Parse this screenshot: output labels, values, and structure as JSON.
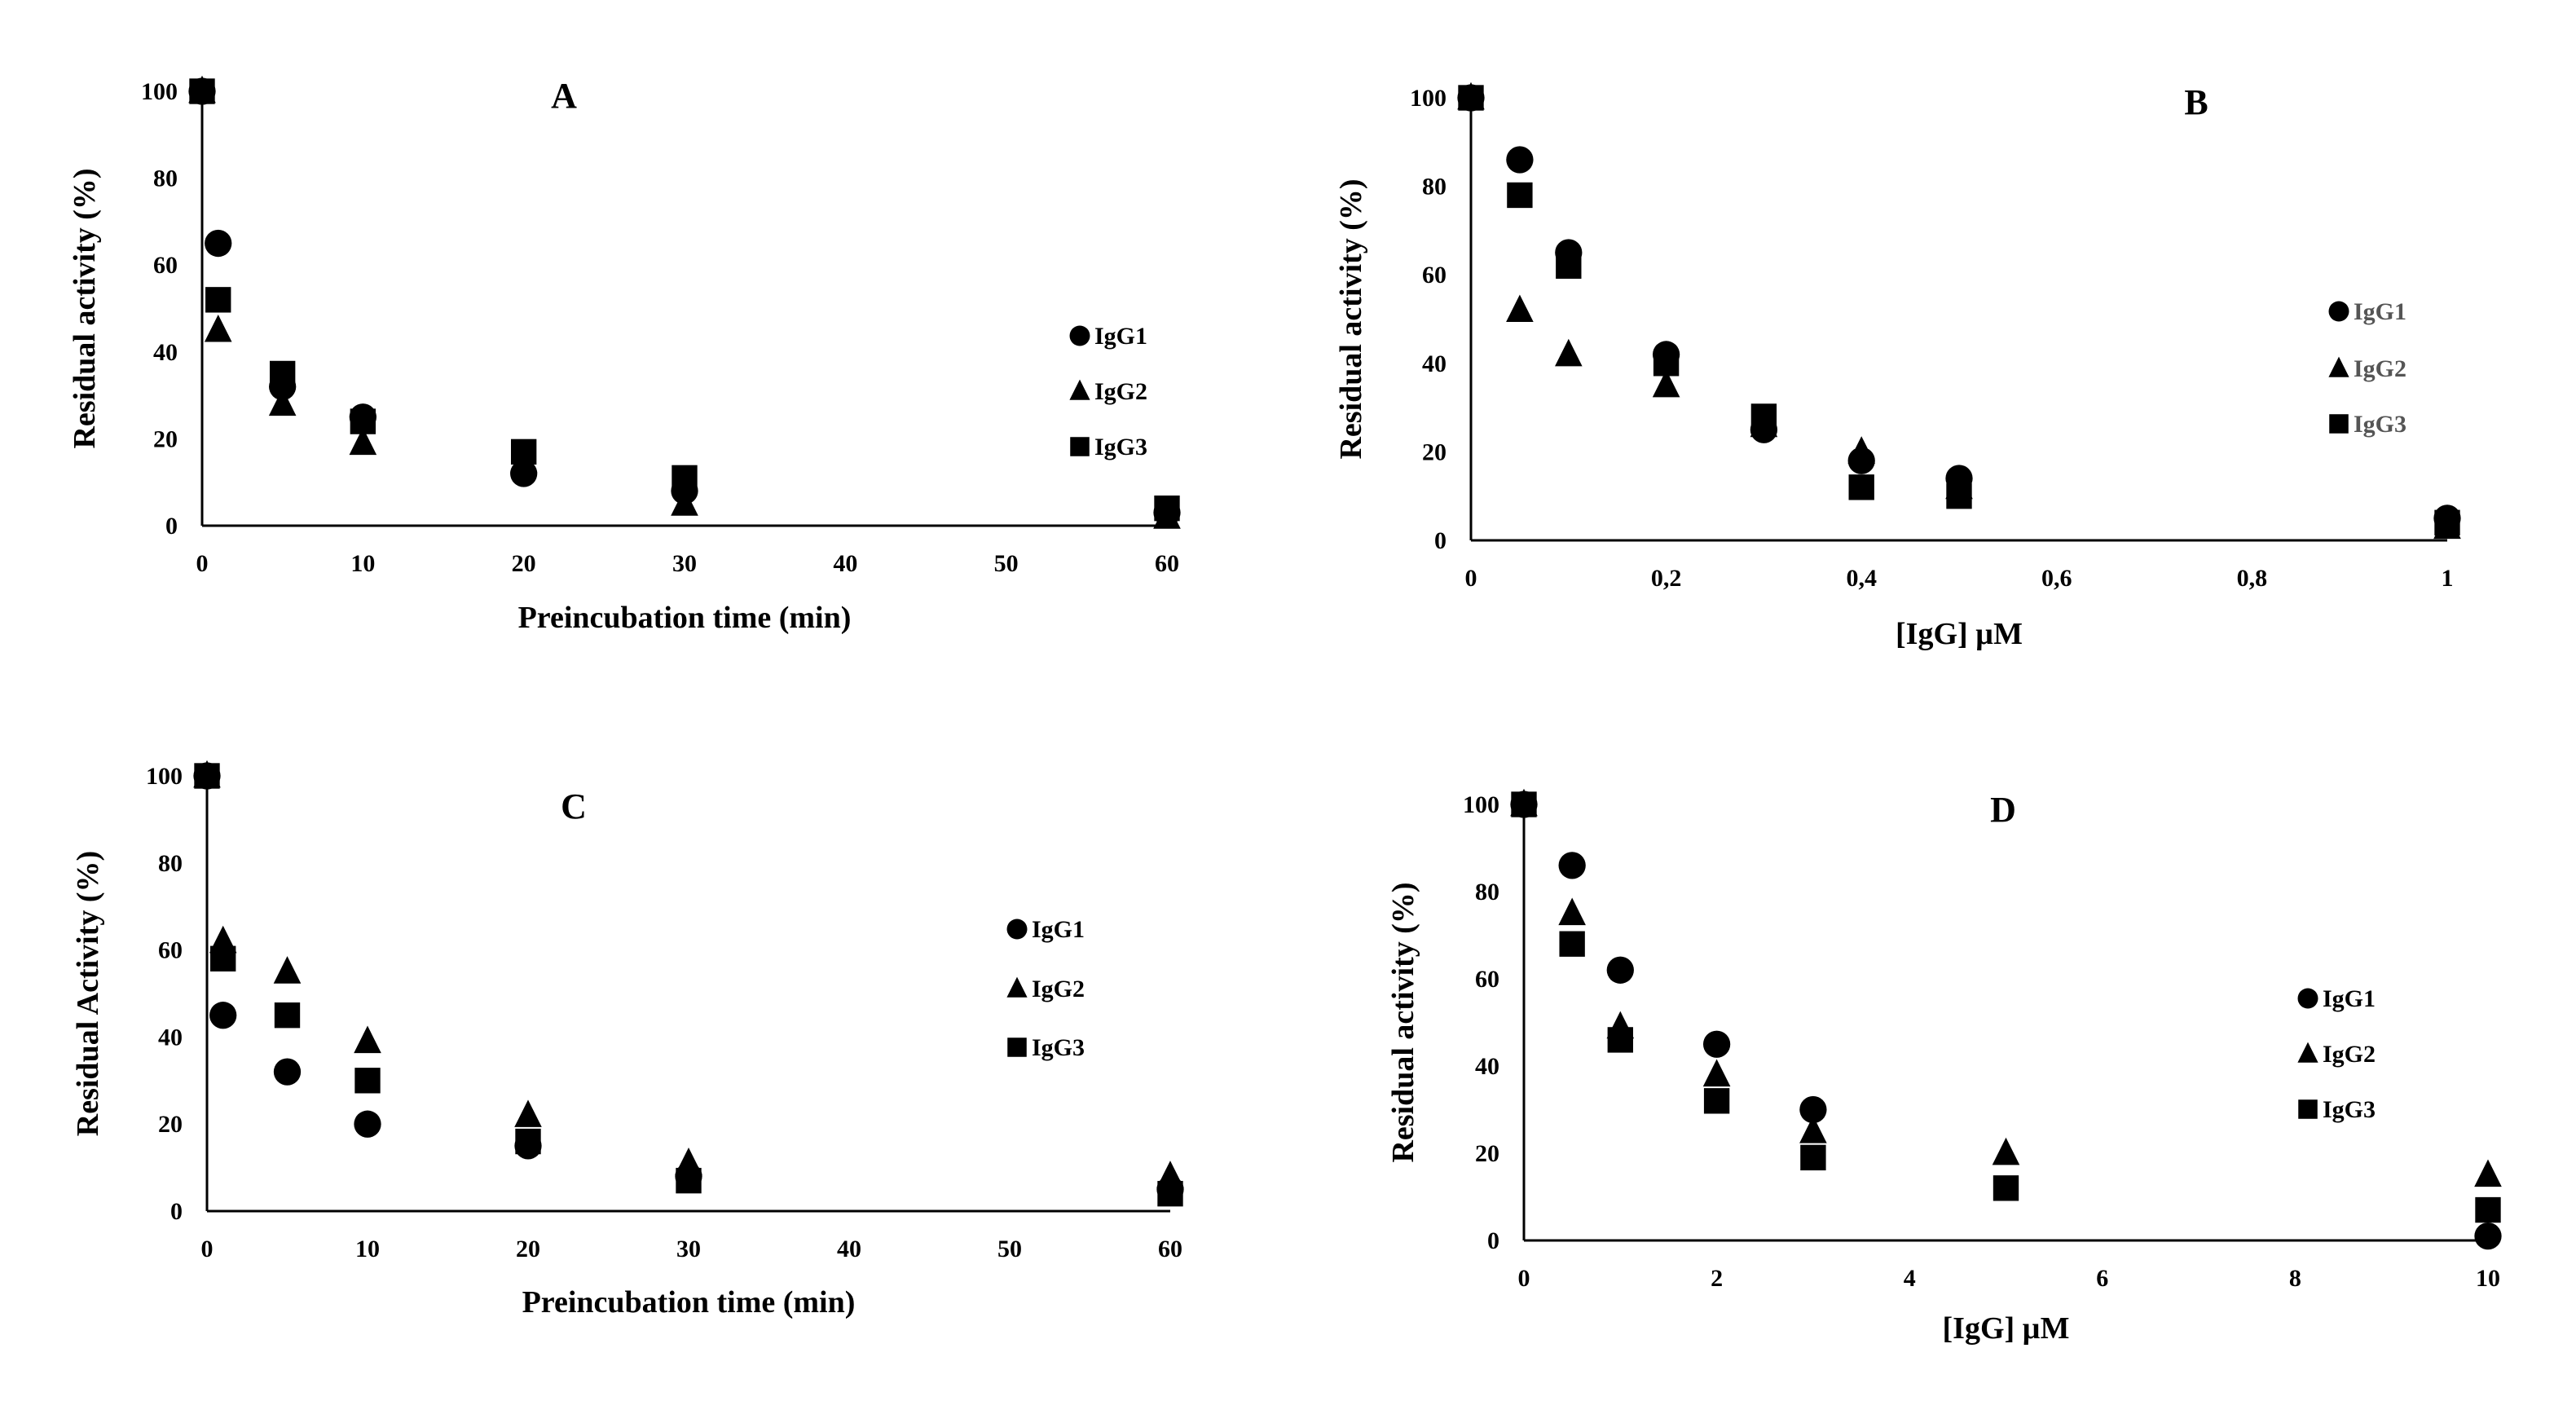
{
  "figure": {
    "colors": {
      "marker": "#000000",
      "axis": "#000000",
      "background": "#ffffff",
      "legend_text_B": "#555555"
    }
  },
  "chart_data": [
    {
      "panel": "A",
      "type": "scatter",
      "title": "A",
      "xlabel": "Preincubation time (min)",
      "ylabel": "Residual activity (%)",
      "xlim": [
        0,
        60
      ],
      "ylim": [
        0,
        100
      ],
      "xticks": [
        "0",
        "10",
        "20",
        "30",
        "40",
        "50",
        "60"
      ],
      "xtick_values": [
        0,
        10,
        20,
        30,
        40,
        50,
        60
      ],
      "yticks": [
        "0",
        "20",
        "40",
        "60",
        "80",
        "100"
      ],
      "ytick_values": [
        0,
        20,
        40,
        60,
        80,
        100
      ],
      "legend_position": "right",
      "series": [
        {
          "name": "IgG1",
          "marker": "circle",
          "x": [
            0,
            1,
            5,
            10,
            20,
            30,
            60
          ],
          "y": [
            100,
            65,
            32,
            25,
            12,
            8,
            3
          ]
        },
        {
          "name": "IgG2",
          "marker": "triangle",
          "x": [
            0,
            1,
            5,
            10,
            20,
            30,
            60
          ],
          "y": [
            100,
            45,
            28,
            19,
            15,
            5,
            2
          ]
        },
        {
          "name": "IgG3",
          "marker": "square",
          "x": [
            0,
            1,
            5,
            10,
            20,
            30,
            60
          ],
          "y": [
            100,
            52,
            35,
            24,
            17,
            11,
            4
          ]
        }
      ]
    },
    {
      "panel": "B",
      "type": "scatter",
      "title": "B",
      "xlabel": "[IgG] µM",
      "ylabel": "Residual activity (%)",
      "xlim": [
        0,
        1
      ],
      "ylim": [
        0,
        100
      ],
      "xticks": [
        "0",
        "0,2",
        "0,4",
        "0,6",
        "0,8",
        "1"
      ],
      "xtick_values": [
        0,
        0.2,
        0.4,
        0.6,
        0.8,
        1
      ],
      "yticks": [
        "0",
        "20",
        "40",
        "60",
        "80",
        "100"
      ],
      "ytick_values": [
        0,
        20,
        40,
        60,
        80,
        100
      ],
      "legend_position": "right",
      "series": [
        {
          "name": "IgG1",
          "marker": "circle",
          "x": [
            0,
            0.05,
            0.1,
            0.2,
            0.3,
            0.4,
            0.5,
            1
          ],
          "y": [
            100,
            86,
            65,
            42,
            25,
            18,
            14,
            5
          ]
        },
        {
          "name": "IgG2",
          "marker": "triangle",
          "x": [
            0,
            0.05,
            0.1,
            0.2,
            0.3,
            0.4,
            0.5,
            1
          ],
          "y": [
            100,
            52,
            42,
            35,
            26,
            20,
            12,
            3
          ]
        },
        {
          "name": "IgG3",
          "marker": "square",
          "x": [
            0,
            0.05,
            0.1,
            0.2,
            0.3,
            0.4,
            0.5,
            1
          ],
          "y": [
            100,
            78,
            62,
            40,
            28,
            12,
            10,
            4
          ]
        }
      ]
    },
    {
      "panel": "C",
      "type": "scatter",
      "title": "C",
      "xlabel": "Preincubation time (min)",
      "ylabel": "Residual Activity (%)",
      "xlim": [
        0,
        60
      ],
      "ylim": [
        0,
        100
      ],
      "xticks": [
        "0",
        "10",
        "20",
        "30",
        "40",
        "50",
        "60"
      ],
      "xtick_values": [
        0,
        10,
        20,
        30,
        40,
        50,
        60
      ],
      "yticks": [
        "0",
        "20",
        "40",
        "60",
        "80",
        "100"
      ],
      "ytick_values": [
        0,
        20,
        40,
        60,
        80,
        100
      ],
      "legend_position": "right",
      "series": [
        {
          "name": "IgG1",
          "marker": "circle",
          "x": [
            0,
            1,
            5,
            10,
            20,
            30,
            60
          ],
          "y": [
            100,
            45,
            32,
            20,
            15,
            8,
            5
          ]
        },
        {
          "name": "IgG2",
          "marker": "triangle",
          "x": [
            0,
            1,
            5,
            10,
            20,
            30,
            60
          ],
          "y": [
            100,
            62,
            55,
            39,
            22,
            11,
            8
          ]
        },
        {
          "name": "IgG3",
          "marker": "square",
          "x": [
            0,
            1,
            5,
            10,
            20,
            30,
            60
          ],
          "y": [
            100,
            58,
            45,
            30,
            16,
            7,
            4
          ]
        }
      ]
    },
    {
      "panel": "D",
      "type": "scatter",
      "title": "D",
      "xlabel": "[IgG] µM",
      "ylabel": "Residual activity (%)",
      "xlim": [
        0,
        10
      ],
      "ylim": [
        0,
        100
      ],
      "xticks": [
        "0",
        "2",
        "4",
        "6",
        "8",
        "10"
      ],
      "xtick_values": [
        0,
        2,
        4,
        6,
        8,
        10
      ],
      "yticks": [
        "0",
        "20",
        "40",
        "60",
        "80",
        "100"
      ],
      "ytick_values": [
        0,
        20,
        40,
        60,
        80,
        100
      ],
      "legend_position": "right",
      "series": [
        {
          "name": "IgG1",
          "marker": "circle",
          "x": [
            0,
            0.5,
            1,
            2,
            3,
            10
          ],
          "y": [
            100,
            86,
            62,
            45,
            30,
            1
          ]
        },
        {
          "name": "IgG2",
          "marker": "triangle",
          "x": [
            0,
            0.5,
            1,
            2,
            3,
            5,
            10
          ],
          "y": [
            100,
            75,
            49,
            38,
            25,
            20,
            15
          ]
        },
        {
          "name": "IgG3",
          "marker": "square",
          "x": [
            0,
            0.5,
            1,
            2,
            3,
            5,
            10
          ],
          "y": [
            100,
            68,
            46,
            32,
            19,
            12,
            7
          ]
        }
      ]
    }
  ]
}
